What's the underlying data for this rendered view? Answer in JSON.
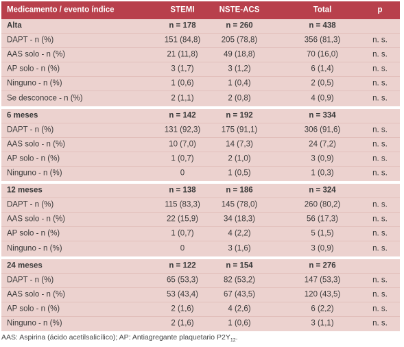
{
  "header": {
    "col0": "Medicamento / evento índice",
    "col1": "STEMI",
    "col2": "NSTE-ACS",
    "col3": "Total",
    "col4": "p"
  },
  "groups": [
    {
      "title": "Alta",
      "stemi": "n = 178",
      "nste": "n = 260",
      "total": "n = 438",
      "rows": [
        {
          "label": "DAPT - n (%)",
          "stemi": "151 (84,8)",
          "nste": "205 (78,8)",
          "total": "356 (81,3)",
          "p": "n. s."
        },
        {
          "label": "AAS solo - n (%)",
          "stemi": "21 (11,8)",
          "nste": "49 (18,8)",
          "total": "70 (16,0)",
          "p": "n. s."
        },
        {
          "label": "AP solo - n (%)",
          "stemi": "3 (1,7)",
          "nste": "3 (1,2)",
          "total": "6 (1,4)",
          "p": "n. s."
        },
        {
          "label": "Ninguno - n (%)",
          "stemi": "1 (0,6)",
          "nste": "1 (0,4)",
          "total": "2 (0,5)",
          "p": "n. s."
        },
        {
          "label": "Se desconoce - n (%)",
          "stemi": "2 (1,1)",
          "nste": "2 (0,8)",
          "total": "4 (0,9)",
          "p": "n. s."
        }
      ]
    },
    {
      "title": "6 meses",
      "stemi": "n = 142",
      "nste": "n = 192",
      "total": "n = 334",
      "rows": [
        {
          "label": "DAPT - n (%)",
          "stemi": "131 (92,3)",
          "nste": "175 (91,1)",
          "total": "306 (91,6)",
          "p": "n. s."
        },
        {
          "label": "AAS solo - n (%)",
          "stemi": "10 (7,0)",
          "nste": "14 (7,3)",
          "total": "24 (7,2)",
          "p": "n. s."
        },
        {
          "label": "AP solo - n (%)",
          "stemi": "1 (0,7)",
          "nste": "2 (1,0)",
          "total": "3 (0,9)",
          "p": "n. s."
        },
        {
          "label": "Ninguno - n (%)",
          "stemi": "0",
          "nste": "1 (0,5)",
          "total": "1 (0,3)",
          "p": "n. s."
        }
      ]
    },
    {
      "title": "12 meses",
      "stemi": "n = 138",
      "nste": "n = 186",
      "total": "n = 324",
      "rows": [
        {
          "label": "DAPT - n (%)",
          "stemi": "115 (83,3)",
          "nste": "145 (78,0)",
          "total": "260 (80,2)",
          "p": "n. s."
        },
        {
          "label": "AAS solo - n (%)",
          "stemi": "22 (15,9)",
          "nste": "34 (18,3)",
          "total": "56 (17,3)",
          "p": "n. s."
        },
        {
          "label": "AP solo - n (%)",
          "stemi": "1 (0,7)",
          "nste": "4 (2,2)",
          "total": "5 (1,5)",
          "p": "n. s."
        },
        {
          "label": "Ninguno - n (%)",
          "stemi": "0",
          "nste": "3 (1,6)",
          "total": "3 (0,9)",
          "p": "n. s."
        }
      ]
    },
    {
      "title": "24 meses",
      "stemi": "n = 122",
      "nste": "n = 154",
      "total": "n = 276",
      "rows": [
        {
          "label": "DAPT - n (%)",
          "stemi": "65 (53,3)",
          "nste": "82 (53,2)",
          "total": "147 (53,3)",
          "p": "n. s."
        },
        {
          "label": "AAS solo - n (%)",
          "stemi": "53 (43,4)",
          "nste": "67 (43,5)",
          "total": "120 (43,5)",
          "p": "n. s."
        },
        {
          "label": "AP solo - n (%)",
          "stemi": "2 (1,6)",
          "nste": "4 (2,6)",
          "total": "6 (2,2)",
          "p": "n. s."
        },
        {
          "label": "Ninguno - n (%)",
          "stemi": "2 (1,6)",
          "nste": "1 (0,6)",
          "total": "3 (1,1)",
          "p": "n. s."
        }
      ]
    }
  ],
  "footnote": {
    "text": "AAS: Aspirina (ácido acetilsalicílico); AP: Antiagregante plaquetario P2Y",
    "sub": "12",
    "end": "."
  },
  "colors": {
    "header_bg": "#b8404c",
    "band_bg": "#ecd2cf"
  }
}
